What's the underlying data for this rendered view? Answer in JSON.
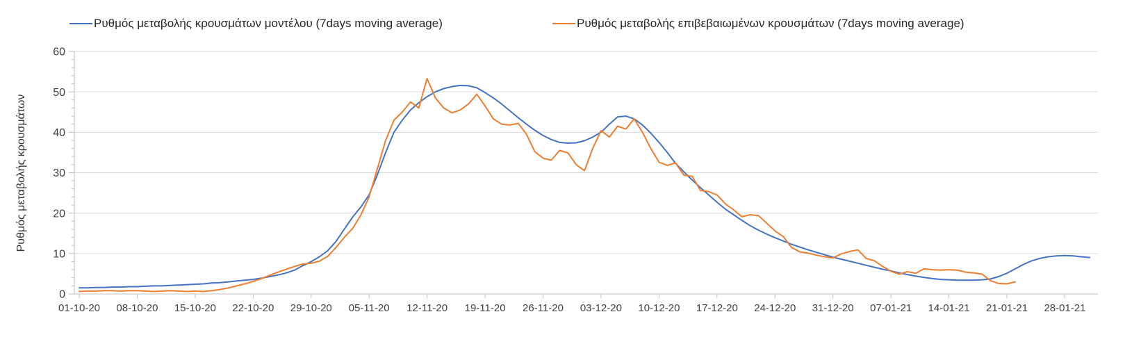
{
  "chart_data": {
    "type": "line",
    "title": "",
    "xlabel": "",
    "ylabel": "Ρυθμός μεταβολής κρουσμάτων",
    "ylim": [
      0,
      60
    ],
    "yticks": [
      0,
      10,
      20,
      30,
      40,
      50,
      60
    ],
    "y_minor_tick_step": 2,
    "grid": "horizontal",
    "legend_position": "top",
    "x_tick_step_days": 7,
    "x_tick_labels": [
      "01-10-20",
      "08-10-20",
      "15-10-20",
      "22-10-20",
      "29-10-20",
      "05-11-20",
      "12-11-20",
      "19-11-20",
      "26-11-20",
      "03-12-20",
      "10-12-20",
      "17-12-20",
      "24-12-20",
      "31-12-20",
      "07-01-21",
      "14-01-21",
      "21-01-21",
      "28-01-21"
    ],
    "series": [
      {
        "name": "Ρυθμός μεταβολής κρουσμάτων μοντέλου (7days moving average)",
        "color": "#4472C4",
        "values": [
          1.5,
          1.5,
          1.6,
          1.6,
          1.7,
          1.7,
          1.8,
          1.8,
          1.9,
          2.0,
          2.0,
          2.1,
          2.2,
          2.3,
          2.4,
          2.5,
          2.7,
          2.8,
          3.0,
          3.2,
          3.4,
          3.6,
          3.9,
          4.3,
          4.7,
          5.2,
          5.9,
          7.0,
          8.0,
          9.2,
          10.7,
          13.0,
          16.0,
          19.0,
          21.5,
          24.5,
          29.5,
          35.0,
          40.0,
          43.0,
          45.5,
          47.3,
          48.8,
          50.0,
          50.8,
          51.3,
          51.6,
          51.5,
          51.0,
          49.8,
          48.5,
          47.0,
          45.3,
          43.6,
          42.0,
          40.5,
          39.2,
          38.2,
          37.5,
          37.3,
          37.4,
          37.9,
          38.8,
          40.0,
          42.0,
          43.8,
          44.0,
          43.3,
          41.8,
          39.8,
          37.5,
          35.0,
          32.3,
          30.2,
          28.2,
          26.3,
          24.5,
          22.7,
          21.0,
          19.6,
          18.2,
          16.9,
          15.8,
          14.8,
          13.9,
          13.1,
          12.3,
          11.6,
          10.9,
          10.3,
          9.7,
          9.1,
          8.6,
          8.1,
          7.6,
          7.1,
          6.6,
          6.1,
          5.7,
          5.2,
          4.8,
          4.4,
          4.1,
          3.8,
          3.6,
          3.5,
          3.4,
          3.4,
          3.4,
          3.5,
          3.7,
          4.3,
          5.1,
          6.2,
          7.3,
          8.2,
          8.8,
          9.2,
          9.4,
          9.5,
          9.4,
          9.2,
          9.0
        ]
      },
      {
        "name": "Ρυθμός μεταβολής επιβεβαιωμένων κρουσμάτων (7days moving average)",
        "color": "#ED7D31",
        "values": [
          0.6,
          0.7,
          0.7,
          0.8,
          0.8,
          0.7,
          0.8,
          0.8,
          0.7,
          0.6,
          0.7,
          0.8,
          0.7,
          0.6,
          0.7,
          0.6,
          0.8,
          1.1,
          1.5,
          2.0,
          2.5,
          3.1,
          3.8,
          4.6,
          5.4,
          6.1,
          6.8,
          7.4,
          7.6,
          8.1,
          9.3,
          11.5,
          14.0,
          16.2,
          19.5,
          24.0,
          31.0,
          38.0,
          43.0,
          45.0,
          47.5,
          46.0,
          53.3,
          48.5,
          46.0,
          44.8,
          45.5,
          47.0,
          49.4,
          46.5,
          43.3,
          42.0,
          41.8,
          42.2,
          39.5,
          35.2,
          33.6,
          33.1,
          35.5,
          34.9,
          32.0,
          30.5,
          36.0,
          40.4,
          38.8,
          41.5,
          40.8,
          43.3,
          40.0,
          36.0,
          32.6,
          31.8,
          32.4,
          29.4,
          29.1,
          25.6,
          25.3,
          24.5,
          22.3,
          20.8,
          19.1,
          19.6,
          19.4,
          17.5,
          15.6,
          14.2,
          11.5,
          10.4,
          10.1,
          9.6,
          9.2,
          8.9,
          9.9,
          10.5,
          10.9,
          8.8,
          8.2,
          6.8,
          5.6,
          4.9,
          5.5,
          5.1,
          6.2,
          6.0,
          5.9,
          6.0,
          5.9,
          5.4,
          5.2,
          4.9,
          3.3,
          2.6,
          2.5,
          3.0
        ]
      }
    ]
  }
}
